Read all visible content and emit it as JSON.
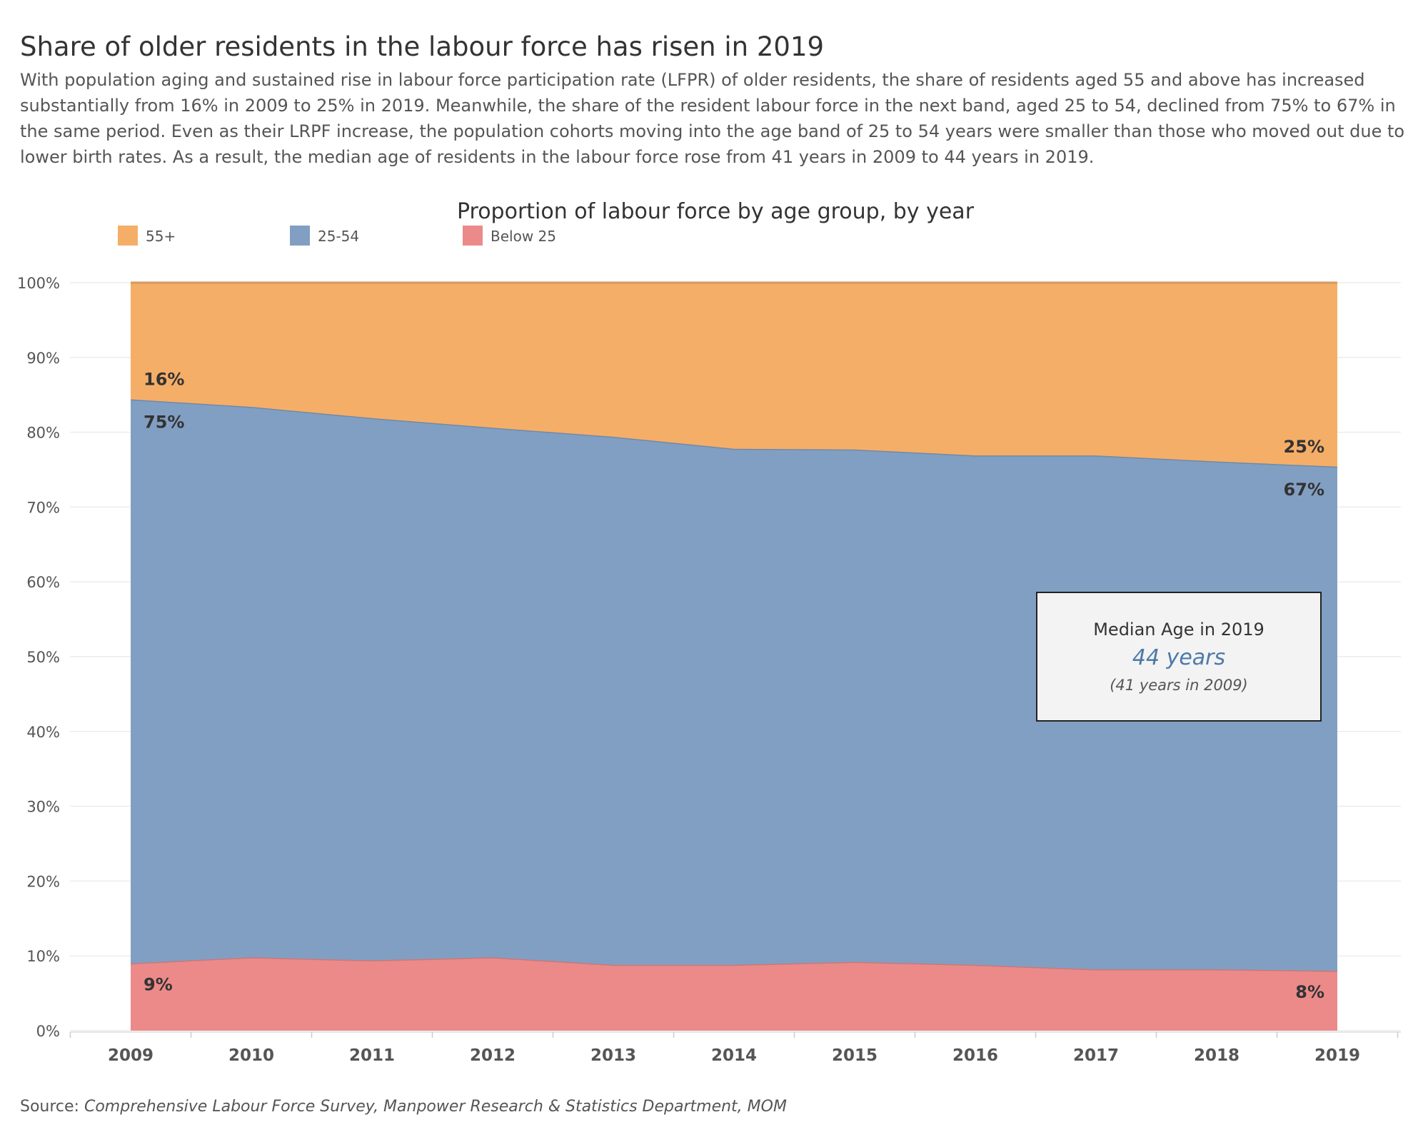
{
  "header": {
    "title": "Share of older residents in the labour force has risen in 2019",
    "description": "With population aging and sustained rise in labour force participation rate (LFPR) of older residents, the share of residents aged 55 and above has increased substantially from 16% in 2009 to 25% in 2019. Meanwhile, the share of the resident labour force in the next band, aged 25 to 54, declined from 75% to 67% in the same period. Even as their LRPF increase, the population cohorts moving into the age band of 25 to 54 years were smaller than those who moved out due to lower birth rates. As a result, the median age of residents in the labour force rose from 41 years in 2009 to 44 years in 2019."
  },
  "chart_data": {
    "type": "area",
    "stacked": true,
    "title": "Proportion of labour force by age group, by year",
    "xlabel": "",
    "ylabel": "",
    "categories": [
      "2009",
      "2010",
      "2011",
      "2012",
      "2013",
      "2014",
      "2015",
      "2016",
      "2017",
      "2018",
      "2019"
    ],
    "ylim": [
      0,
      100
    ],
    "y_ticks": [
      "0%",
      "10%",
      "20%",
      "30%",
      "40%",
      "50%",
      "60%",
      "70%",
      "80%",
      "90%",
      "100%"
    ],
    "grid": true,
    "legend_position": "top-left",
    "series": [
      {
        "name": "Below 25",
        "color": "#ec8a8a",
        "values": [
          9.0,
          9.8,
          9.4,
          9.8,
          8.8,
          8.8,
          9.2,
          8.8,
          8.2,
          8.2,
          8.0
        ]
      },
      {
        "name": "25-54",
        "color": "#819fc3",
        "values": [
          75.4,
          73.6,
          72.5,
          70.8,
          70.6,
          69.0,
          68.5,
          68.1,
          68.7,
          67.9,
          67.4
        ]
      },
      {
        "name": "55+",
        "color": "#f5ae67",
        "values": [
          15.6,
          16.6,
          18.1,
          19.4,
          20.6,
          22.2,
          22.3,
          23.1,
          23.1,
          23.9,
          24.6
        ]
      }
    ],
    "data_labels": [
      {
        "text": "16%",
        "series": "55+",
        "category": "2009"
      },
      {
        "text": "75%",
        "series": "25-54",
        "category": "2009"
      },
      {
        "text": "9%",
        "series": "Below 25",
        "category": "2009"
      },
      {
        "text": "25%",
        "series": "55+",
        "category": "2019"
      },
      {
        "text": "67%",
        "series": "25-54",
        "category": "2019"
      },
      {
        "text": "8%",
        "series": "Below 25",
        "category": "2019"
      }
    ],
    "annotation": {
      "title": "Median Age in 2019",
      "value": "44 years",
      "note": "(41 years in 2009)"
    }
  },
  "source": {
    "label": "Source:",
    "text": "Comprehensive Labour Force Survey, Manpower Research & Statistics Department, MOM"
  },
  "colors": {
    "annotation_value": "#4e79a7",
    "label_text": "#333333",
    "axis_text": "#555555",
    "grid": "#ececec"
  }
}
